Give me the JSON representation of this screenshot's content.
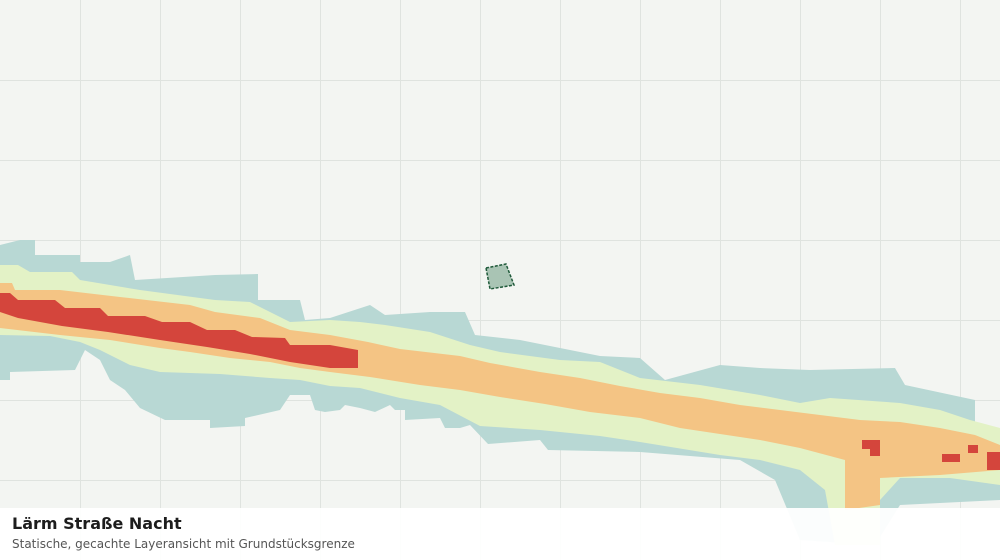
{
  "map": {
    "title": "Lärm Straße Nacht",
    "subtitle": "Statische, gecachte Layeransicht mit Grundstücksgrenze"
  }
}
